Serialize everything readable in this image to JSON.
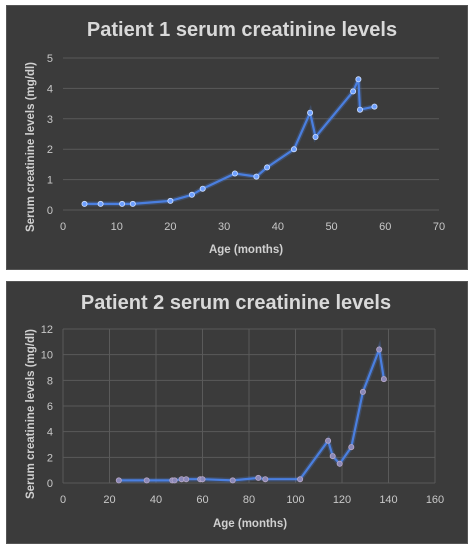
{
  "chart_data": [
    {
      "type": "line",
      "title": "Patient 1 serum creatinine levels",
      "xlabel": "Age (months)",
      "ylabel": "Serum creatinine levels (mg/dl)",
      "xlim": [
        0,
        70
      ],
      "ylim": [
        0,
        5
      ],
      "xticks": [
        "0",
        "10",
        "20",
        "30",
        "40",
        "50",
        "60",
        "70"
      ],
      "yticks": [
        "0",
        "1",
        "2",
        "3",
        "4",
        "5"
      ],
      "grid": "horizontal",
      "series": [
        {
          "x": [
            4,
            7,
            11,
            13,
            20,
            24,
            26,
            32,
            36,
            38,
            43,
            46,
            47,
            54,
            55,
            55.3,
            58
          ],
          "y": [
            0.2,
            0.2,
            0.2,
            0.2,
            0.3,
            0.5,
            0.7,
            1.2,
            1.1,
            1.4,
            2.0,
            3.2,
            2.4,
            3.9,
            4.3,
            3.3,
            3.4
          ]
        }
      ],
      "colors": {
        "line": "#4a7fe0",
        "point": "#6ea0ff",
        "background": "#3b3b3b"
      }
    },
    {
      "type": "line",
      "title": "Patient 2 serum creatinine levels",
      "xlabel": "Age (months)",
      "ylabel": "Serum creatinine levels (mg/dl)",
      "xlim": [
        0,
        160
      ],
      "ylim": [
        0,
        12
      ],
      "xticks": [
        "0",
        "20",
        "40",
        "60",
        "80",
        "100",
        "120",
        "140",
        "160"
      ],
      "yticks": [
        "0",
        "2",
        "4",
        "6",
        "8",
        "10",
        "12"
      ],
      "grid": "both",
      "series": [
        {
          "x": [
            24,
            36,
            47,
            48,
            51,
            53,
            59,
            60,
            73,
            84,
            87,
            102,
            114,
            116,
            119,
            124,
            129,
            136,
            138
          ],
          "y": [
            0.2,
            0.2,
            0.2,
            0.2,
            0.3,
            0.3,
            0.3,
            0.3,
            0.2,
            0.4,
            0.3,
            0.3,
            3.3,
            2.1,
            1.5,
            2.8,
            7.1,
            10.4,
            8.1
          ]
        }
      ],
      "colors": {
        "line": "#4a7fe0",
        "point": "#8a88b8",
        "background": "#3b3b3b"
      }
    }
  ]
}
